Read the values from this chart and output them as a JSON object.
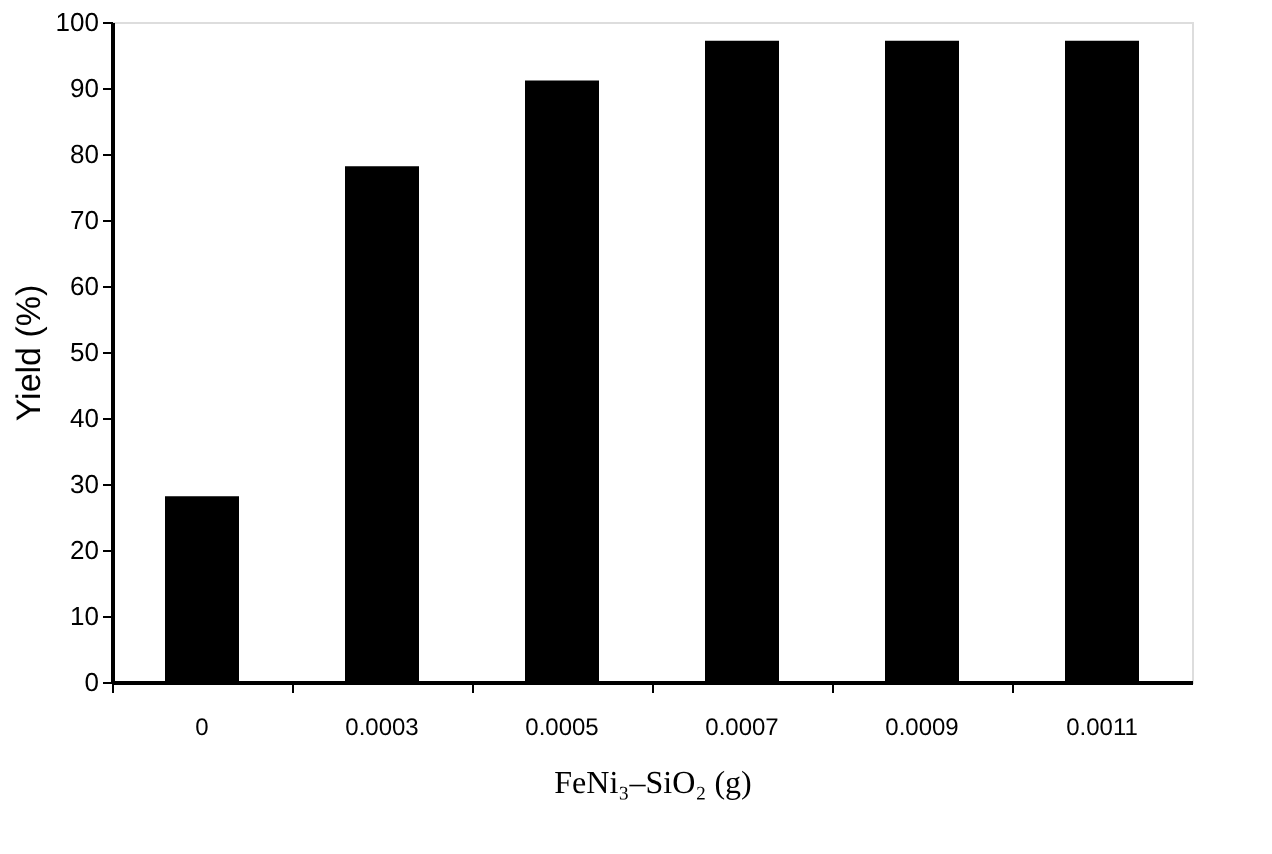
{
  "chart_data": {
    "type": "bar",
    "xlabel": "FeNi₃–SiO₂ (g)",
    "ylabel": "Yield (%)",
    "categories": [
      "0",
      "0.0003",
      "0.0005",
      "0.0007",
      "0.0009",
      "0.0011"
    ],
    "values": [
      28,
      78,
      91,
      97,
      97,
      97
    ],
    "color": "#000000",
    "ylim": [
      0,
      100
    ],
    "yticks": [
      0,
      10,
      20,
      30,
      40,
      50,
      60,
      70,
      80,
      90,
      100
    ],
    "grid": false
  }
}
